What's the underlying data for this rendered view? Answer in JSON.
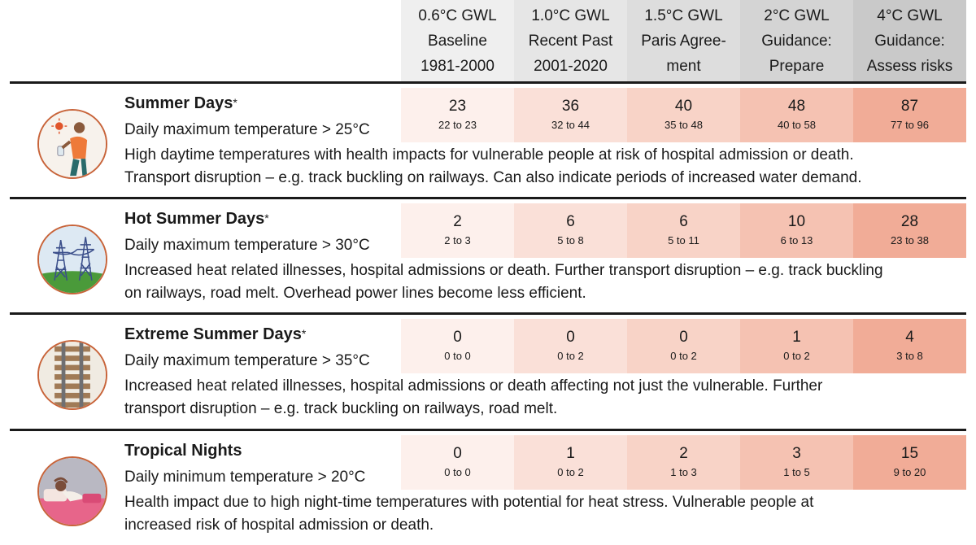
{
  "columns": [
    {
      "gwl": "0.6°C GWL",
      "line1": "Baseline",
      "line2": "1981-2000",
      "header_color": "#efefef",
      "cell_color": "#fdf0ec"
    },
    {
      "gwl": "1.0°C GWL",
      "line1": "Recent Past",
      "line2": "2001-2020",
      "header_color": "#e6e6e6",
      "cell_color": "#fae0d8"
    },
    {
      "gwl": "1.5°C GWL",
      "line1": "Paris Agree-",
      "line2": "ment",
      "header_color": "#dddddd",
      "cell_color": "#f8d3c7"
    },
    {
      "gwl": "2°C GWL",
      "line1": "Guidance:",
      "line2": "Prepare",
      "header_color": "#d4d4d4",
      "cell_color": "#f5c2b2"
    },
    {
      "gwl": "4°C GWL",
      "line1": "Guidance:",
      "line2": "Assess risks",
      "header_color": "#c9c9c9",
      "cell_color": "#f1ac97"
    }
  ],
  "indicators": [
    {
      "title": "Summer Days",
      "star": "*",
      "subtitle": "Daily maximum temperature > 25°C",
      "desc_lines": [
        "High daytime temperatures with health impacts for vulnerable people at risk of hospital admission or death.",
        "Transport disruption – e.g. track buckling on railways. Can also indicate periods of increased water demand."
      ],
      "icon": "person-in-heat-icon",
      "values": [
        {
          "value": "23",
          "range": "22 to 23"
        },
        {
          "value": "36",
          "range": "32 to 44"
        },
        {
          "value": "40",
          "range": "35 to 48"
        },
        {
          "value": "48",
          "range": "40 to 58"
        },
        {
          "value": "87",
          "range": "77 to 96"
        }
      ]
    },
    {
      "title": "Hot Summer Days",
      "star": "*",
      "subtitle": "Daily maximum temperature > 30°C",
      "desc_lines": [
        "Increased heat related illnesses, hospital admissions or death. Further transport disruption – e.g. track buckling",
        "on railways, road melt. Overhead power lines become less efficient."
      ],
      "icon": "power-pylon-icon",
      "values": [
        {
          "value": "2",
          "range": "2 to 3"
        },
        {
          "value": "6",
          "range": "5 to 8"
        },
        {
          "value": "6",
          "range": "5 to 11"
        },
        {
          "value": "10",
          "range": "6 to 13"
        },
        {
          "value": "28",
          "range": "23 to 38"
        }
      ]
    },
    {
      "title": "Extreme Summer Days",
      "star": "*",
      "subtitle": "Daily maximum temperature > 35°C",
      "desc_lines": [
        "Increased heat related illnesses, hospital admissions or death affecting not just the vulnerable. Further",
        "transport disruption – e.g. track buckling on railways, road melt."
      ],
      "icon": "railway-track-icon",
      "values": [
        {
          "value": "0",
          "range": "0 to 0"
        },
        {
          "value": "0",
          "range": "0 to 2"
        },
        {
          "value": "0",
          "range": "0 to 2"
        },
        {
          "value": "1",
          "range": "0 to 2"
        },
        {
          "value": "4",
          "range": "3 to 8"
        }
      ]
    },
    {
      "title": "Tropical Nights",
      "star": "",
      "subtitle": "Daily minimum temperature > 20°C",
      "desc_lines": [
        "Health impact due to high night-time temperatures with potential for heat stress. Vulnerable people at",
        "increased risk of hospital admission or death."
      ],
      "icon": "person-in-bed-icon",
      "values": [
        {
          "value": "0",
          "range": "0 to 0"
        },
        {
          "value": "1",
          "range": "0 to 2"
        },
        {
          "value": "2",
          "range": "1 to 3"
        },
        {
          "value": "3",
          "range": "1 to 5"
        },
        {
          "value": "15",
          "range": "9 to 20"
        }
      ]
    }
  ]
}
